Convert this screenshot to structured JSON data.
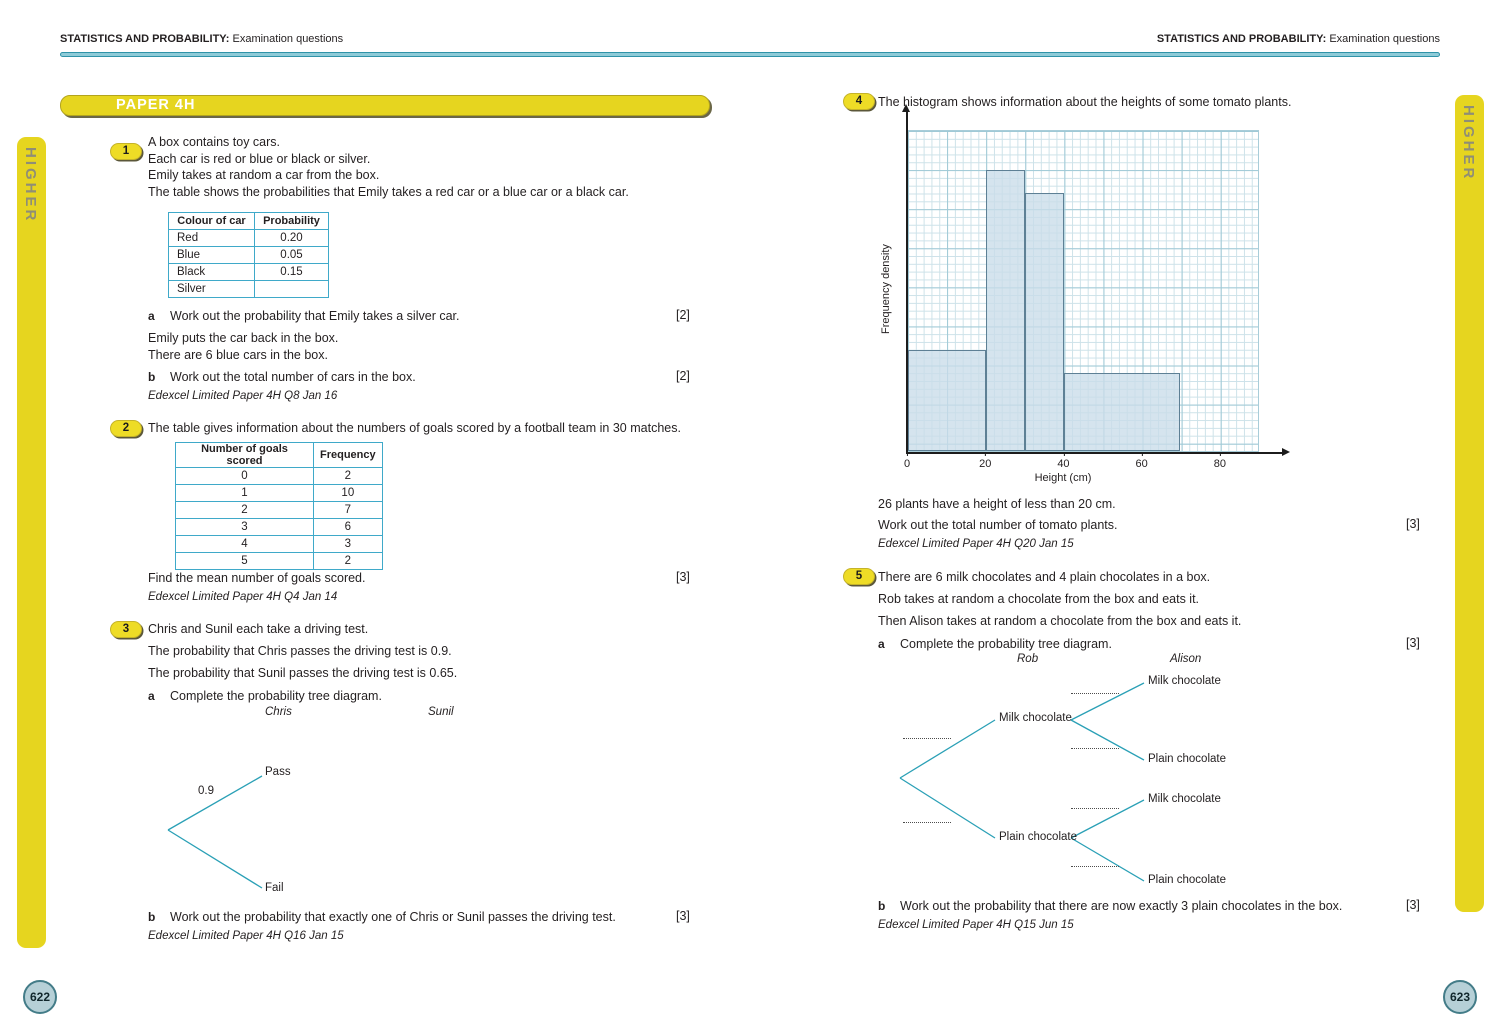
{
  "header": {
    "bold": "STATISTICS AND PROBABILITY:",
    "rest": "Examination questions"
  },
  "side_tab": "HIGHER",
  "left": {
    "banner": "PAPER 4H",
    "page_number": "622",
    "q1": {
      "num": "1",
      "intro": [
        "A box contains toy cars.",
        "Each car is red or blue or black or silver.",
        "Emily takes at random a car from the box.",
        "The table shows the probabilities that Emily takes a red car or a blue car or a black car."
      ],
      "table": {
        "headers": [
          "Colour of car",
          "Probability"
        ],
        "rows": [
          [
            "Red",
            "0.20"
          ],
          [
            "Blue",
            "0.05"
          ],
          [
            "Black",
            "0.15"
          ],
          [
            "Silver",
            ""
          ]
        ]
      },
      "a_label": "a",
      "a_text": "Work out the probability that Emily takes a silver car.",
      "a_marks": "[2]",
      "mid": [
        "Emily puts the car back in the box.",
        "There are 6 blue cars in the box."
      ],
      "b_label": "b",
      "b_text": "Work out the total number of cars in the box.",
      "b_marks": "[2]",
      "source": "Edexcel Limited Paper 4H Q8 Jan 16"
    },
    "q2": {
      "num": "2",
      "intro": "The table gives information about the numbers of goals scored by a football team in 30 matches.",
      "table": {
        "headers": [
          "Number of goals scored",
          "Frequency"
        ],
        "rows": [
          [
            "0",
            "2"
          ],
          [
            "1",
            "10"
          ],
          [
            "2",
            "7"
          ],
          [
            "3",
            "6"
          ],
          [
            "4",
            "3"
          ],
          [
            "5",
            "2"
          ]
        ]
      },
      "task": "Find the mean number of goals scored.",
      "task_marks": "[3]",
      "source": "Edexcel Limited Paper 4H Q4 Jan 14"
    },
    "q3": {
      "num": "3",
      "intro": [
        "Chris and Sunil each take a driving test.",
        "The probability that Chris passes the driving test is 0.9.",
        "The probability that Sunil passes the driving test is 0.65."
      ],
      "a_label": "a",
      "a_text": "Complete the probability tree diagram.",
      "tree": {
        "col1": "Chris",
        "col2": "Sunil",
        "prob": "0.9",
        "outcomes": [
          "Pass",
          "Fail"
        ]
      },
      "b_label": "b",
      "b_text": "Work out the probability that exactly one of Chris or Sunil passes the driving test.",
      "b_marks": "[3]",
      "source": "Edexcel Limited Paper 4H Q16 Jan 15"
    }
  },
  "right": {
    "page_number": "623",
    "q4": {
      "num": "4",
      "intro": "The histogram shows information about the heights of some tomato plants.",
      "chart_data": {
        "type": "histogram",
        "xlabel": "Height (cm)",
        "ylabel": "Frequency density",
        "x_ticks": [
          0,
          20,
          40,
          60,
          80
        ],
        "x_max": 90,
        "y_max": 4.1,
        "grid": true,
        "bars": [
          {
            "from": 0,
            "to": 20,
            "frequency_density": 1.3
          },
          {
            "from": 20,
            "to": 30,
            "frequency_density": 3.6
          },
          {
            "from": 30,
            "to": 40,
            "frequency_density": 3.3
          },
          {
            "from": 40,
            "to": 70,
            "frequency_density": 1.0
          }
        ]
      },
      "note": "26 plants have a height of less than 20 cm.",
      "task": "Work out the total number of tomato plants.",
      "task_marks": "[3]",
      "source": "Edexcel Limited Paper 4H Q20 Jan 15"
    },
    "q5": {
      "num": "5",
      "intro": [
        "There are 6 milk chocolates and 4 plain chocolates in a box.",
        "Rob takes at random a chocolate from the box and eats it.",
        "Then Alison takes at random a chocolate from the box and eats it."
      ],
      "a_label": "a",
      "a_text": "Complete the probability tree diagram.",
      "a_marks": "[3]",
      "tree": {
        "col1": "Rob",
        "col2": "Alison",
        "level1": [
          "Milk chocolate",
          "Plain chocolate"
        ],
        "level2": [
          "Milk chocolate",
          "Plain chocolate",
          "Milk chocolate",
          "Plain chocolate"
        ]
      },
      "b_label": "b",
      "b_text": "Work out the probability that there are now exactly 3 plain chocolates in the box.",
      "b_marks": "[3]",
      "source": "Edexcel Limited Paper 4H Q15 Jun 15"
    }
  }
}
